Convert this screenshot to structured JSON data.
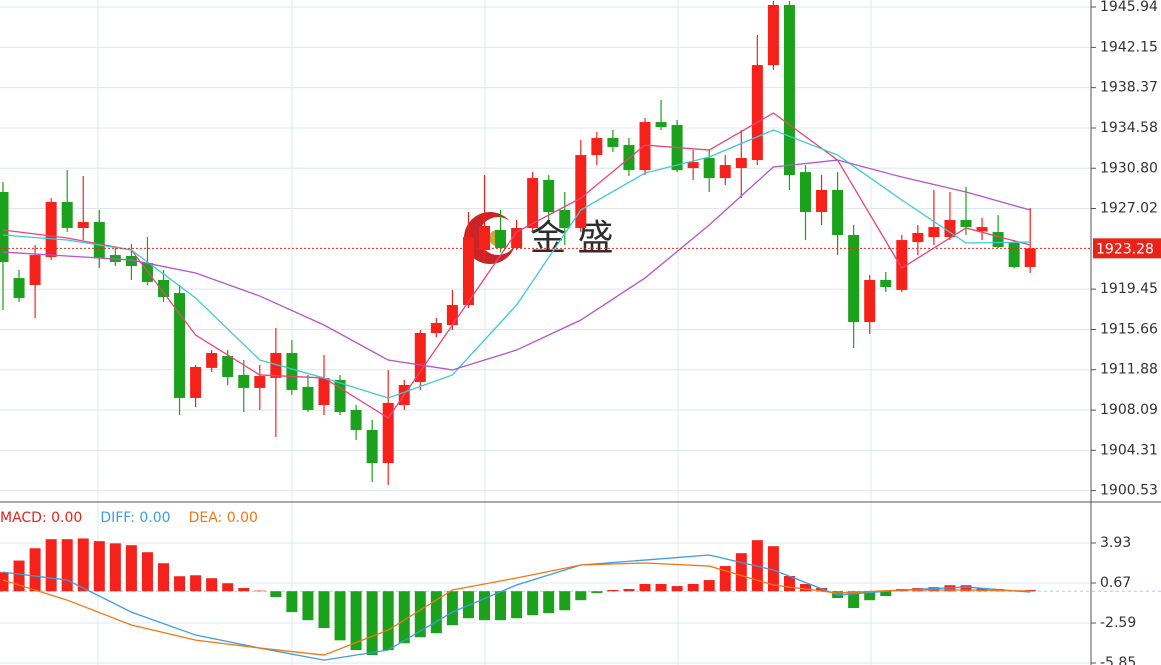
{
  "chart_data": [
    {
      "type": "candlestick",
      "up_color": "#f5221b",
      "down_color": "#1ba11b",
      "open": [
        1928.57,
        1920.49,
        1919.84,
        1922.47,
        1927.63,
        1925.19,
        1925.75,
        1922.65,
        1922.56,
        1921.9,
        1920.31,
        1919.08,
        1909.23,
        1912.05,
        1913.17,
        1911.39,
        1910.17,
        1911.11,
        1913.45,
        1910.26,
        1908.57,
        1910.92,
        1908.1,
        1906.22,
        1903.12,
        1908.57,
        1910.73,
        1915.33,
        1916.08,
        1917.96,
        1923.12,
        1925.0,
        1923.31,
        1925.19,
        1929.7,
        1926.88,
        1925.19,
        1932.04,
        1933.64,
        1932.98,
        1930.63,
        1935.14,
        1934.86,
        1930.82,
        1931.76,
        1929.88,
        1930.82,
        1931.57,
        1940.49,
        1946.13,
        1930.44,
        1926.69,
        1928.76,
        1924.53,
        1916.36,
        1920.31,
        1919.37,
        1923.87,
        1924.34,
        1924.34,
        1925.94,
        1924.87,
        1924.81,
        1923.78,
        1921.53
      ],
      "high": [
        1929.51,
        1921.25,
        1923.59,
        1928.0,
        1930.63,
        1930.07,
        1926.88,
        1923.31,
        1923.69,
        1924.34,
        1921.25,
        1919.84,
        1912.33,
        1913.73,
        1913.73,
        1912.8,
        1912.33,
        1915.8,
        1914.67,
        1911.39,
        1913.26,
        1911.39,
        1908.57,
        1907.16,
        1911.86,
        1910.92,
        1915.61,
        1916.74,
        1919.37,
        1926.69,
        1930.16,
        1926.88,
        1925.94,
        1930.44,
        1930.16,
        1928.57,
        1933.45,
        1934.2,
        1934.39,
        1933.64,
        1935.52,
        1937.21,
        1935.33,
        1932.51,
        1932.51,
        1932.04,
        1934.39,
        1943.31,
        1946.5,
        1946.5,
        1931.1,
        1930.16,
        1930.44,
        1925.47,
        1920.77,
        1921.06,
        1924.53,
        1925.47,
        1928.76,
        1928.57,
        1929.04,
        1926.12,
        1926.41,
        1924.06,
        1927.07
      ],
      "low": [
        1917.49,
        1918.24,
        1916.74,
        1922.18,
        1924.81,
        1924.06,
        1921.43,
        1921.62,
        1920.31,
        1919.84,
        1918.24,
        1907.63,
        1908.38,
        1911.67,
        1910.45,
        1907.91,
        1908.1,
        1905.56,
        1909.51,
        1907.91,
        1907.63,
        1907.63,
        1905.28,
        1901.34,
        1901.06,
        1908.1,
        1909.98,
        1914.95,
        1915.61,
        1917.68,
        1922.37,
        1922.9,
        1923.12,
        1924.81,
        1925.94,
        1923.59,
        1924.81,
        1931.1,
        1932.33,
        1930.07,
        1930.16,
        1934.39,
        1930.44,
        1929.7,
        1928.57,
        1929.23,
        1928.0,
        1931.1,
        1940.03,
        1928.76,
        1924.06,
        1925.47,
        1922.65,
        1913.92,
        1915.24,
        1919.18,
        1919.18,
        1922.65,
        1923.59,
        1924.06,
        1924.53,
        1924.06,
        1923.31,
        1921.43,
        1920.96
      ],
      "close": [
        1922.0,
        1918.62,
        1922.65,
        1927.63,
        1925.19,
        1925.75,
        1922.37,
        1922.0,
        1921.62,
        1920.12,
        1918.71,
        1909.23,
        1912.14,
        1913.45,
        1911.2,
        1910.17,
        1911.29,
        1913.45,
        1909.98,
        1908.1,
        1911.11,
        1907.91,
        1906.22,
        1903.12,
        1908.76,
        1910.45,
        1915.33,
        1916.27,
        1917.96,
        1924.34,
        1925.38,
        1923.3,
        1925.19,
        1929.88,
        1926.69,
        1925.19,
        1932.04,
        1933.64,
        1932.8,
        1930.63,
        1935.14,
        1934.67,
        1930.63,
        1931.38,
        1929.88,
        1931.1,
        1931.76,
        1940.49,
        1946.13,
        1930.16,
        1926.69,
        1928.76,
        1924.53,
        1916.36,
        1920.31,
        1919.65,
        1924.06,
        1924.72,
        1925.28,
        1925.94,
        1925.28,
        1925.28,
        1923.4,
        1921.53,
        1923.28
      ],
      "series": [
        {
          "color": "#e8457a",
          "x": [
            0,
            4,
            8,
            12,
            16,
            20,
            24,
            28,
            32,
            36,
            40,
            44,
            48,
            52,
            56,
            60,
            64
          ],
          "values": [
            1925.0,
            1924.25,
            1923.12,
            1915.14,
            1911.39,
            1911.11,
            1907.35,
            1916.08,
            1924.81,
            1928.0,
            1932.98,
            1932.51,
            1935.99,
            1931.57,
            1921.43,
            1925.19,
            1923.59
          ]
        },
        {
          "color": "#3fc8d8",
          "x": [
            0,
            4,
            8,
            12,
            16,
            20,
            24,
            28,
            32,
            36,
            40,
            44,
            48,
            52,
            56,
            60,
            64
          ],
          "values": [
            1924.53,
            1924.06,
            1923.12,
            1918.62,
            1912.79,
            1911.11,
            1909.23,
            1911.39,
            1917.96,
            1926.88,
            1930.35,
            1931.86,
            1934.39,
            1932.04,
            1927.82,
            1923.78,
            1923.87
          ]
        },
        {
          "color": "#b455c8",
          "x": [
            0,
            4,
            8,
            12,
            16,
            20,
            24,
            28,
            32,
            36,
            40,
            44,
            48,
            52,
            56,
            60,
            64
          ],
          "values": [
            1922.93,
            1922.56,
            1922.18,
            1920.96,
            1918.8,
            1916.08,
            1912.79,
            1911.86,
            1913.73,
            1916.55,
            1920.49,
            1925.47,
            1930.92,
            1931.57,
            1929.98,
            1928.57,
            1926.88
          ]
        }
      ],
      "ylim": [
        1899.46,
        1946.6
      ],
      "yticks": [
        1945.94,
        1942.15,
        1938.37,
        1934.58,
        {
          "value": 1930.8,
          "label": "1930.80"
        },
        1927.02,
        1919.45,
        1915.66,
        1911.88,
        1908.09,
        1904.31,
        1900.53
      ],
      "last_price": 1923.28,
      "watermark": "金 盛",
      "grid": true
    },
    {
      "type": "macd",
      "pos_color": "#f5221b",
      "neg_color": "#1ba11b",
      "series": [
        {
          "name": "MACD: 0.00",
          "color": "#e8231a",
          "values": [
            1.55,
            2.5,
            3.5,
            4.24,
            4.24,
            4.3,
            4.08,
            3.9,
            3.75,
            3.18,
            2.28,
            1.22,
            1.3,
            1.06,
            0.65,
            0.26,
            0.05,
            -0.47,
            -1.7,
            -2.36,
            -3.0,
            -4.0,
            -4.8,
            -5.2,
            -4.8,
            -4.24,
            -3.75,
            -3.42,
            -2.77,
            -2.2,
            -2.36,
            -2.36,
            -2.2,
            -1.95,
            -1.78,
            -1.55,
            -0.73,
            -0.15,
            0.1,
            0.18,
            0.59,
            0.59,
            0.42,
            0.59,
            0.91,
            2.05,
            3.1,
            4.16,
            3.67,
            1.24,
            0.59,
            0.26,
            -0.55,
            -1.37,
            -0.73,
            -0.39,
            0.18,
            0.26,
            0.33,
            0.49,
            0.49,
            0.26,
            0.18,
            0.02,
            0.1
          ]
        },
        {
          "name": "DIFF: 0.00",
          "color": "#3d9de0",
          "x": [
            0,
            4,
            8,
            12,
            16,
            20,
            24,
            28,
            32,
            36,
            40,
            44,
            48,
            52,
            56,
            60,
            64
          ],
          "values": [
            1.56,
            0.91,
            -1.7,
            -3.57,
            -4.63,
            -5.61,
            -4.79,
            -1.7,
            0.51,
            2.14,
            2.54,
            2.95,
            1.73,
            -0.31,
            0.1,
            0.34,
            -0.07
          ]
        },
        {
          "name": "DEA: 0.00",
          "color": "#f07818",
          "x": [
            0,
            4,
            8,
            12,
            16,
            20,
            24,
            28,
            32,
            36,
            40,
            44,
            48,
            52,
            56,
            60,
            64
          ],
          "values": [
            0.91,
            -0.72,
            -2.75,
            -3.98,
            -4.63,
            -5.2,
            -3.16,
            0.1,
            1.08,
            2.14,
            2.3,
            2.05,
            0.51,
            -0.15,
            0.1,
            0.1,
            0.02
          ]
        }
      ],
      "ylim": [
        -6.01,
        7.27
      ],
      "yticks": [
        3.93,
        0.67,
        -2.59,
        -5.85
      ],
      "grid": true
    }
  ]
}
